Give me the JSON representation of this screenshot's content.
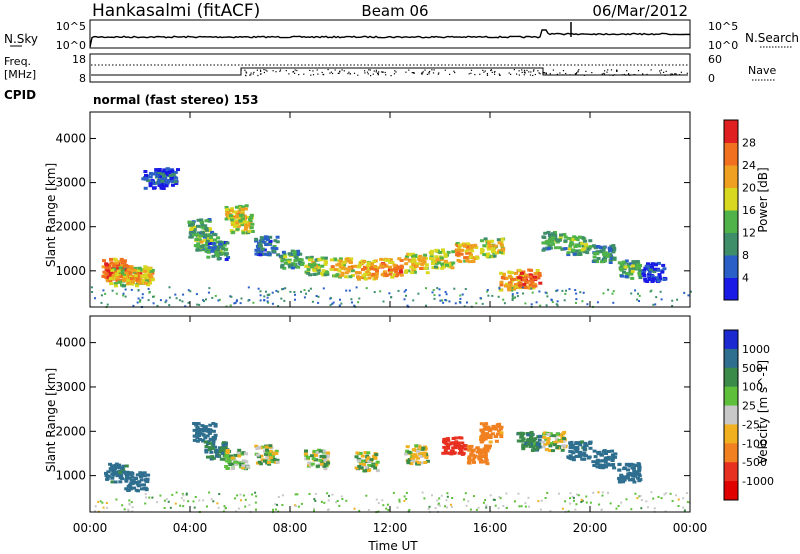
{
  "header": {
    "station": "Hankasalmi (fitACF)",
    "beam": "Beam 06",
    "date": "06/Mar/2012"
  },
  "noise_panel": {
    "left_label": "N.Sky",
    "right_label": "N.Search",
    "ticks_left": [
      "10^5",
      "10^0"
    ],
    "ticks_right": [
      "10^5",
      "10^0"
    ]
  },
  "freq_panel": {
    "left_label_1": "Freq.",
    "left_label_2": "[MHz]",
    "left_ticks": [
      "18",
      "8"
    ],
    "right_label": "Nave",
    "right_ticks": [
      "60",
      "0"
    ],
    "cpid_label": "CPID",
    "cpid_text": "normal (fast stereo) 153"
  },
  "x_axis": {
    "label": "Time UT",
    "ticks": [
      "00:00",
      "04:00",
      "08:00",
      "12:00",
      "16:00",
      "20:00",
      "00:00"
    ]
  },
  "power_panel": {
    "ylabel": "Slant Range [km]",
    "yticks": [
      "4000",
      "3000",
      "2000",
      "1000"
    ],
    "colorbar_label": "Power [dB]",
    "colorbar_ticks": [
      "28",
      "24",
      "20",
      "16",
      "12",
      "8",
      "4"
    ],
    "colors": [
      "#1a1ae6",
      "#2a5fc8",
      "#3e8e6a",
      "#4fb34a",
      "#d8d820",
      "#f0a020",
      "#f07020",
      "#e02020"
    ]
  },
  "velocity_panel": {
    "ylabel": "Slant Range [km]",
    "yticks": [
      "4000",
      "3000",
      "2000",
      "1000"
    ],
    "colorbar_label": "Velocity [m s^-1]",
    "colorbar_ticks": [
      "1000",
      "500",
      "100",
      "25",
      "-25",
      "-100",
      "-500",
      "-1000"
    ],
    "colors": [
      "#1a2ad0",
      "#2e6e8e",
      "#3a8a4a",
      "#5ec03a",
      "#c8c8c8",
      "#f0b020",
      "#f08020",
      "#e83020",
      "#e00000"
    ]
  },
  "chart_data": [
    {
      "type": "heatmap",
      "title": "Power",
      "xlabel": "Time UT",
      "ylabel": "Slant Range [km]",
      "xlim": [
        0,
        24
      ],
      "ylim": [
        180,
        4600
      ],
      "colorbar": {
        "label": "Power [dB]",
        "range": [
          0,
          32
        ]
      },
      "cells": [
        {
          "t": 0.9,
          "r": 1100,
          "v": 28
        },
        {
          "t": 1.0,
          "r": 1000,
          "v": 30
        },
        {
          "t": 1.2,
          "r": 900,
          "v": 20
        },
        {
          "t": 1.8,
          "r": 950,
          "v": 26
        },
        {
          "t": 2.0,
          "r": 900,
          "v": 22
        },
        {
          "t": 2.5,
          "r": 3100,
          "v": 6
        },
        {
          "t": 3.0,
          "r": 3150,
          "v": 8
        },
        {
          "t": 4.3,
          "r": 2000,
          "v": 14
        },
        {
          "t": 4.6,
          "r": 1700,
          "v": 16
        },
        {
          "t": 5.0,
          "r": 1500,
          "v": 12
        },
        {
          "t": 5.8,
          "r": 2300,
          "v": 22
        },
        {
          "t": 6.0,
          "r": 2100,
          "v": 20
        },
        {
          "t": 7.0,
          "r": 1600,
          "v": 10
        },
        {
          "t": 8.0,
          "r": 1300,
          "v": 14
        },
        {
          "t": 9.0,
          "r": 1150,
          "v": 18
        },
        {
          "t": 10.0,
          "r": 1100,
          "v": 22
        },
        {
          "t": 11.0,
          "r": 1050,
          "v": 24
        },
        {
          "t": 12.0,
          "r": 1100,
          "v": 26
        },
        {
          "t": 13.0,
          "r": 1200,
          "v": 22
        },
        {
          "t": 14.0,
          "r": 1300,
          "v": 20
        },
        {
          "t": 15.0,
          "r": 1450,
          "v": 24
        },
        {
          "t": 16.0,
          "r": 1550,
          "v": 20
        },
        {
          "t": 16.8,
          "r": 800,
          "v": 24
        },
        {
          "t": 17.5,
          "r": 850,
          "v": 28
        },
        {
          "t": 18.5,
          "r": 1700,
          "v": 14
        },
        {
          "t": 19.5,
          "r": 1600,
          "v": 16
        },
        {
          "t": 20.5,
          "r": 1400,
          "v": 12
        },
        {
          "t": 21.5,
          "r": 1050,
          "v": 14
        },
        {
          "t": 22.5,
          "r": 1000,
          "v": 6
        }
      ]
    },
    {
      "type": "heatmap",
      "title": "Velocity",
      "xlabel": "Time UT",
      "ylabel": "Slant Range [km]",
      "xlim": [
        0,
        24
      ],
      "ylim": [
        180,
        4600
      ],
      "colorbar": {
        "label": "Velocity [m s^-1]",
        "range": [
          -1000,
          1000
        ]
      },
      "cells": [
        {
          "t": 1.0,
          "r": 1100,
          "v": 150
        },
        {
          "t": 1.8,
          "r": 900,
          "v": 200
        },
        {
          "t": 4.5,
          "r": 2000,
          "v": 200
        },
        {
          "t": 5.0,
          "r": 1600,
          "v": 100
        },
        {
          "t": 5.8,
          "r": 1400,
          "v": 0
        },
        {
          "t": 7.0,
          "r": 1500,
          "v": 0
        },
        {
          "t": 9.0,
          "r": 1400,
          "v": 0
        },
        {
          "t": 11.0,
          "r": 1350,
          "v": -10
        },
        {
          "t": 13.0,
          "r": 1500,
          "v": -20
        },
        {
          "t": 14.5,
          "r": 1700,
          "v": -600
        },
        {
          "t": 15.5,
          "r": 1500,
          "v": -300
        },
        {
          "t": 16.0,
          "r": 2000,
          "v": -150
        },
        {
          "t": 17.5,
          "r": 1800,
          "v": 80
        },
        {
          "t": 18.5,
          "r": 1800,
          "v": 0
        },
        {
          "t": 19.5,
          "r": 1600,
          "v": 150
        },
        {
          "t": 20.5,
          "r": 1400,
          "v": 300
        },
        {
          "t": 21.5,
          "r": 1100,
          "v": 200
        }
      ]
    }
  ]
}
